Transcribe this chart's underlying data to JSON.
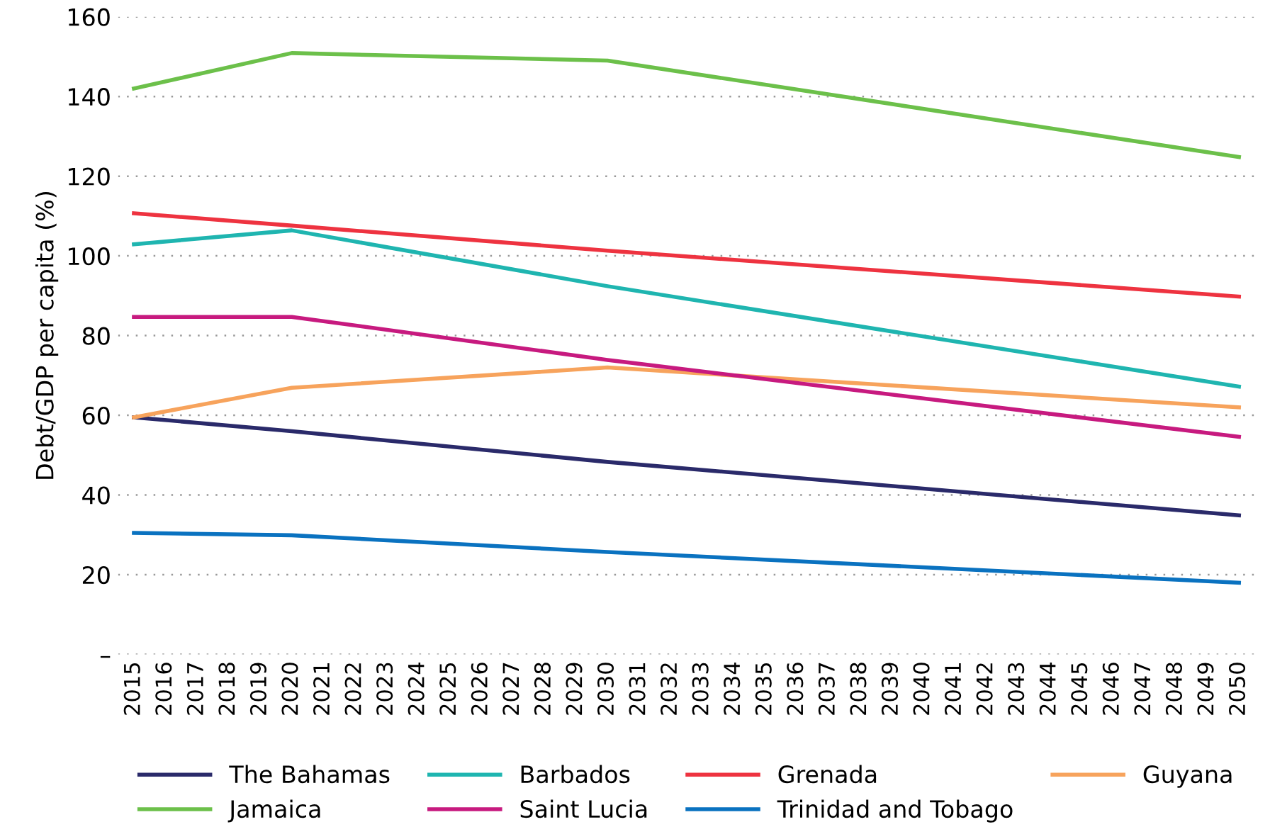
{
  "chart_data": {
    "type": "line",
    "ylabel": "Debt/GDP per capita (%)",
    "xlim": [
      2014.5,
      2050.5
    ],
    "xticks": [
      {
        "value": 2015,
        "label": "2015"
      },
      {
        "value": 2016,
        "label": "2016"
      },
      {
        "value": 2017,
        "label": "2017"
      },
      {
        "value": 2018,
        "label": "2018"
      },
      {
        "value": 2019,
        "label": "2019"
      },
      {
        "value": 2020,
        "label": "2020"
      },
      {
        "value": 2021,
        "label": "2021"
      },
      {
        "value": 2022,
        "label": "2022"
      },
      {
        "value": 2023,
        "label": "2023"
      },
      {
        "value": 2024,
        "label": "2024"
      },
      {
        "value": 2025,
        "label": "2025"
      },
      {
        "value": 2026,
        "label": "2026"
      },
      {
        "value": 2027,
        "label": "2027"
      },
      {
        "value": 2028,
        "label": "2028"
      },
      {
        "value": 2029,
        "label": "2029"
      },
      {
        "value": 2030,
        "label": "2030"
      },
      {
        "value": 2031,
        "label": "2031"
      },
      {
        "value": 2032,
        "label": "2032"
      },
      {
        "value": 2033,
        "label": "2033"
      },
      {
        "value": 2034,
        "label": "2034"
      },
      {
        "value": 2035,
        "label": "2035"
      },
      {
        "value": 2036,
        "label": "2036"
      },
      {
        "value": 2037,
        "label": "2037"
      },
      {
        "value": 2038,
        "label": "2038"
      },
      {
        "value": 2039,
        "label": "2039"
      },
      {
        "value": 2040,
        "label": "2040"
      },
      {
        "value": 2041,
        "label": "2041"
      },
      {
        "value": 2042,
        "label": "2042"
      },
      {
        "value": 2043,
        "label": "2043"
      },
      {
        "value": 2044,
        "label": "2044"
      },
      {
        "value": 2045,
        "label": "2045"
      },
      {
        "value": 2046,
        "label": "2046"
      },
      {
        "value": 2047,
        "label": "2047"
      },
      {
        "value": 2048,
        "label": "2048"
      },
      {
        "value": 2049,
        "label": "2049"
      },
      {
        "value": 2050,
        "label": "2050"
      }
    ],
    "ylim": [
      0,
      160
    ],
    "yticks": [
      {
        "value": 0,
        "label": "–"
      },
      20,
      40,
      60,
      80,
      100,
      120,
      140,
      160
    ],
    "grid": "y",
    "legend": "bottom",
    "line_style": "solid",
    "marker": "none",
    "x": [
      2015,
      2020,
      2030,
      2050
    ],
    "series": [
      {
        "name": "The Bahamas",
        "color": "#2a2a6a",
        "values": [
          59.5,
          56,
          48.3,
          34.9
        ]
      },
      {
        "name": "Barbados",
        "color": "#1fb5b0",
        "values": [
          102.9,
          106.4,
          92.4,
          67.2
        ]
      },
      {
        "name": "Grenada",
        "color": "#ee3340",
        "values": [
          110.7,
          107.6,
          101.3,
          89.8
        ]
      },
      {
        "name": "Guyana",
        "color": "#f7a35c",
        "values": [
          59.5,
          66.9,
          72,
          62
        ]
      },
      {
        "name": "Jamaica",
        "color": "#6cc04a",
        "values": [
          142,
          150.9,
          149,
          124.8
        ]
      },
      {
        "name": "Saint Lucia",
        "color": "#c71a7f",
        "values": [
          84.7,
          84.7,
          73.9,
          54.6
        ]
      },
      {
        "name": "Trinidad and Tobago",
        "color": "#0a72c0",
        "values": [
          30.5,
          29.9,
          25.7,
          18
        ]
      }
    ]
  }
}
